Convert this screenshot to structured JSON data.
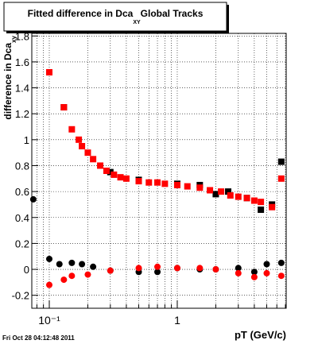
{
  "chart_data": {
    "type": "scatter",
    "title": "Fitted difference in Dca",
    "title_subscript": "XY",
    "title_suffix": "Global Tracks",
    "ylabel": "difference in Dca",
    "ylabel_subscript": "xy",
    "xlabel": "pT (GeV/c)",
    "footer": "Fri Oct 28 04:12:48 2011",
    "log_x": true,
    "grid": true,
    "xlim": [
      0.073,
      7.1
    ],
    "ylim": [
      -0.3,
      1.82
    ],
    "xticks": [
      {
        "value": 0.1,
        "label": "10⁻¹"
      },
      1
    ],
    "xgrid_minor": [
      0.08,
      0.09,
      0.2,
      0.3,
      0.4,
      0.5,
      0.6,
      0.7,
      0.8,
      0.9,
      2,
      3,
      4,
      5,
      6,
      7
    ],
    "yticks": [
      -0.2,
      0,
      0.2,
      0.4,
      0.6,
      0.8,
      1,
      1.2,
      1.4,
      1.6,
      1.8
    ],
    "series": [
      {
        "color": "#000000",
        "marker": "square",
        "x": [
          0.13,
          0.3,
          0.5,
          1.0,
          1.5,
          2.0,
          2.5,
          3.5,
          4.5,
          5.5,
          6.5
        ],
        "values": [
          1.25,
          0.75,
          0.69,
          0.66,
          0.65,
          0.58,
          0.6,
          0.55,
          0.46,
          0.5,
          0.83
        ]
      },
      {
        "color": "#ff0000",
        "marker": "square",
        "x": [
          0.1,
          0.13,
          0.15,
          0.17,
          0.18,
          0.2,
          0.22,
          0.25,
          0.28,
          0.32,
          0.36,
          0.4,
          0.5,
          0.6,
          0.7,
          0.8,
          1.0,
          1.2,
          1.5,
          1.8,
          2.2,
          2.6,
          3.0,
          3.5,
          4.0,
          4.5,
          5.5,
          6.5
        ],
        "values": [
          1.52,
          1.25,
          1.08,
          1.0,
          0.95,
          0.9,
          0.85,
          0.8,
          0.76,
          0.73,
          0.71,
          0.7,
          0.68,
          0.67,
          0.67,
          0.66,
          0.65,
          0.64,
          0.63,
          0.61,
          0.6,
          0.57,
          0.56,
          0.55,
          0.53,
          0.52,
          0.48,
          0.7
        ]
      },
      {
        "color": "#000000",
        "marker": "circle",
        "x": [
          0.075,
          0.1,
          0.12,
          0.15,
          0.18,
          0.22,
          0.3,
          0.5,
          0.7,
          1.0,
          1.5,
          2.0,
          3.0,
          4.0,
          5.0,
          6.5
        ],
        "values": [
          0.54,
          0.08,
          0.04,
          0.05,
          0.04,
          0.02,
          -0.01,
          -0.02,
          -0.02,
          0.01,
          0.0,
          0.0,
          0.01,
          -0.02,
          0.04,
          0.05
        ]
      },
      {
        "color": "#ff0000",
        "marker": "circle",
        "x": [
          0.1,
          0.13,
          0.15,
          0.2,
          0.3,
          0.5,
          0.7,
          1.0,
          1.5,
          2.0,
          3.0,
          4.0,
          5.0,
          6.5
        ],
        "values": [
          -0.12,
          -0.08,
          -0.05,
          -0.04,
          -0.01,
          0.01,
          0.02,
          0.01,
          0.01,
          0.0,
          -0.03,
          -0.06,
          -0.03,
          -0.05
        ]
      }
    ]
  }
}
